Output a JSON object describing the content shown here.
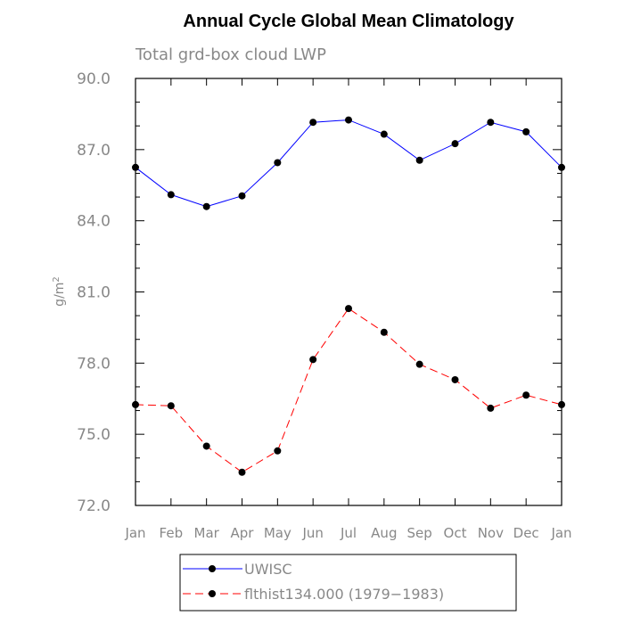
{
  "chart_data": {
    "type": "line",
    "title": "Annual Cycle Global Mean Climatology",
    "subtitle": "Total grd-box cloud LWP",
    "ylabel": "g/m",
    "ylabel_sup": "2",
    "categories": [
      "Jan",
      "Feb",
      "Mar",
      "Apr",
      "May",
      "Jun",
      "Jul",
      "Aug",
      "Sep",
      "Oct",
      "Nov",
      "Dec",
      "Jan"
    ],
    "ylim": [
      72.0,
      90.0
    ],
    "yticks": [
      "72.0",
      "75.0",
      "78.0",
      "81.0",
      "84.0",
      "87.0",
      "90.0"
    ],
    "series": [
      {
        "name": "UWISC",
        "color": "#0000ff",
        "dash": "solid",
        "values": [
          86.25,
          85.1,
          84.6,
          85.05,
          86.45,
          88.15,
          88.25,
          87.65,
          86.55,
          87.25,
          88.15,
          87.75,
          86.25
        ]
      },
      {
        "name": "flthist134.000 (1979−1983)",
        "color": "#ff0000",
        "dash": "dashed",
        "values": [
          76.25,
          76.2,
          74.5,
          73.4,
          74.3,
          78.15,
          80.3,
          79.3,
          77.95,
          77.3,
          76.1,
          76.65,
          76.25
        ]
      }
    ],
    "grid": false,
    "legend_position": "bottom"
  }
}
